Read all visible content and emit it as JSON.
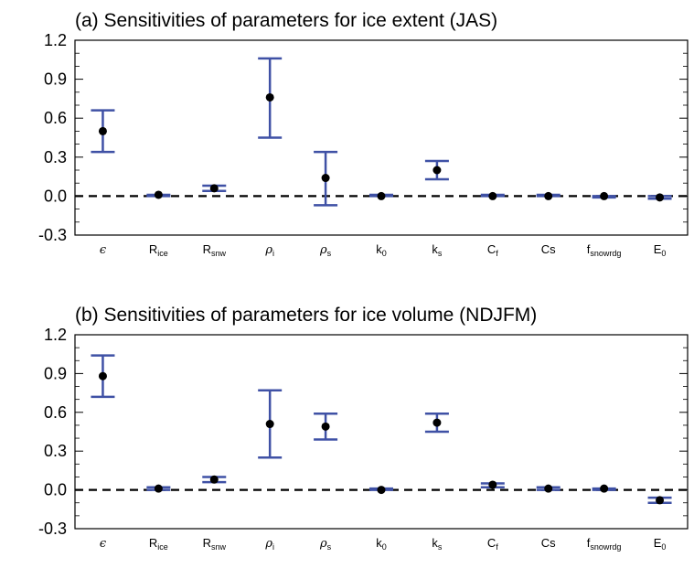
{
  "chart_data": [
    {
      "type": "errorbar",
      "title": "(a) Sensitivities of parameters for ice extent (JAS)",
      "xlabel": "",
      "ylabel": "",
      "ylim": [
        -0.3,
        1.2
      ],
      "yticks": [
        "1.2",
        "0.9",
        "0.6",
        "0.3",
        "0.0",
        "-0.3"
      ],
      "reference_line": 0.0,
      "categories": [
        {
          "base": "ϵ",
          "sub": "",
          "greek": true
        },
        {
          "base": "R",
          "sub": "ice",
          "greek": false
        },
        {
          "base": "R",
          "sub": "snw",
          "greek": false
        },
        {
          "base": "ρ",
          "sub": "i",
          "greek": true
        },
        {
          "base": "ρ",
          "sub": "s",
          "greek": true
        },
        {
          "base": "k",
          "sub": "0",
          "greek": false
        },
        {
          "base": "k",
          "sub": "s",
          "greek": false
        },
        {
          "base": "C",
          "sub": "f",
          "greek": false
        },
        {
          "base": "Cs",
          "sub": "",
          "greek": false
        },
        {
          "base": "f",
          "sub": "snowrdg",
          "greek": false
        },
        {
          "base": "E",
          "sub": "0",
          "greek": false
        }
      ],
      "mean": [
        0.5,
        0.01,
        0.06,
        0.76,
        0.14,
        0.0,
        0.2,
        0.0,
        0.0,
        0.0,
        -0.01
      ],
      "lower": [
        0.34,
        0.0,
        0.04,
        0.45,
        -0.07,
        0.0,
        0.13,
        0.0,
        0.0,
        -0.01,
        -0.02
      ],
      "upper": [
        0.66,
        0.01,
        0.08,
        1.06,
        0.34,
        0.01,
        0.27,
        0.01,
        0.01,
        0.0,
        0.0
      ],
      "colors": {
        "errorbar": "#3f51a5",
        "marker": "#000000",
        "reference": "#000000"
      }
    },
    {
      "type": "errorbar",
      "title": "(b) Sensitivities of parameters for ice volume (NDJFM)",
      "xlabel": "",
      "ylabel": "",
      "ylim": [
        -0.3,
        1.2
      ],
      "yticks": [
        "1.2",
        "0.9",
        "0.6",
        "0.3",
        "0.0",
        "-0.3"
      ],
      "reference_line": 0.0,
      "categories": [
        {
          "base": "ϵ",
          "sub": "",
          "greek": true
        },
        {
          "base": "R",
          "sub": "ice",
          "greek": false
        },
        {
          "base": "R",
          "sub": "snw",
          "greek": false
        },
        {
          "base": "ρ",
          "sub": "i",
          "greek": true
        },
        {
          "base": "ρ",
          "sub": "s",
          "greek": true
        },
        {
          "base": "k",
          "sub": "0",
          "greek": false
        },
        {
          "base": "k",
          "sub": "s",
          "greek": false
        },
        {
          "base": "C",
          "sub": "f",
          "greek": false
        },
        {
          "base": "Cs",
          "sub": "",
          "greek": false
        },
        {
          "base": "f",
          "sub": "snowrdg",
          "greek": false
        },
        {
          "base": "E",
          "sub": "0",
          "greek": false
        }
      ],
      "mean": [
        0.88,
        0.01,
        0.08,
        0.51,
        0.49,
        0.0,
        0.52,
        0.04,
        0.01,
        0.01,
        -0.08
      ],
      "lower": [
        0.72,
        0.0,
        0.06,
        0.25,
        0.39,
        0.0,
        0.45,
        0.02,
        0.0,
        0.0,
        -0.1
      ],
      "upper": [
        1.04,
        0.02,
        0.1,
        0.77,
        0.59,
        0.01,
        0.59,
        0.05,
        0.02,
        0.01,
        -0.06
      ],
      "colors": {
        "errorbar": "#3f51a5",
        "marker": "#000000",
        "reference": "#000000"
      }
    }
  ]
}
